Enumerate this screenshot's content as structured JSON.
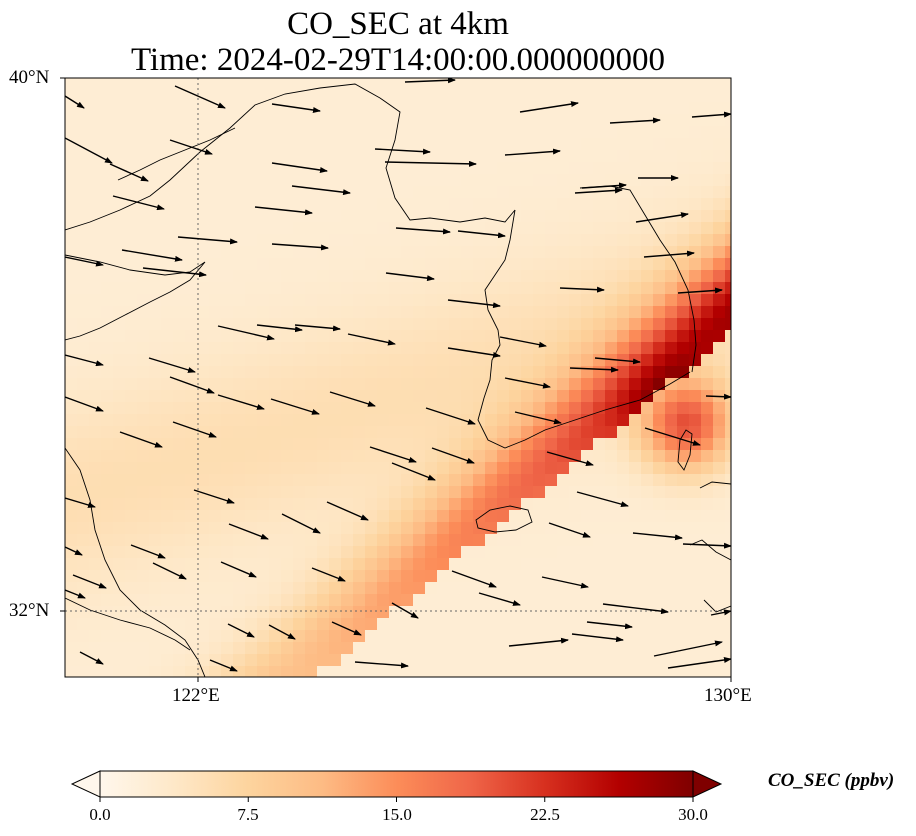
{
  "title": {
    "line1": "CO_SEC at 4km",
    "line2": "Time: 2024-02-29T14:00:00.000000000"
  },
  "map": {
    "extent": {
      "lon_min": 119.5,
      "lon_max": 130,
      "lat_min": 31,
      "lat_max": 40
    },
    "gridlines": {
      "lon": [
        122
      ],
      "lat": [
        32
      ],
      "style": "dotted"
    },
    "lat_ticks": [
      {
        "value": 40,
        "label": "40°N"
      },
      {
        "value": 32,
        "label": "32°N"
      }
    ],
    "lon_ticks": [
      {
        "value": 122,
        "label": "122°E"
      },
      {
        "value": 130,
        "label": "130°E"
      }
    ],
    "background_color": "#fdf5e7",
    "coastline_color": "#000000",
    "wind_vector_color": "#000000",
    "plume_description": "high CO_SEC band along the southeast edge; maximum near 34.8°N 129.3°E",
    "peak": {
      "lon": 129.3,
      "lat": 34.8,
      "value": 29
    }
  },
  "colorbar": {
    "label": "CO_SEC (ppbv)",
    "min": 0,
    "max": 30,
    "extend": "both",
    "ticks": [
      {
        "value": 0,
        "label": "0.0"
      },
      {
        "value": 7.5,
        "label": "7.5"
      },
      {
        "value": 15,
        "label": "15.0"
      },
      {
        "value": 22.5,
        "label": "22.5"
      },
      {
        "value": 30,
        "label": "30.0"
      }
    ],
    "colormap": "OrRd",
    "stops": [
      "#fff7ec",
      "#fee8c8",
      "#fdd49e",
      "#fdbb84",
      "#fc8d59",
      "#ef6548",
      "#d7301f",
      "#b30000",
      "#7f0000"
    ]
  }
}
